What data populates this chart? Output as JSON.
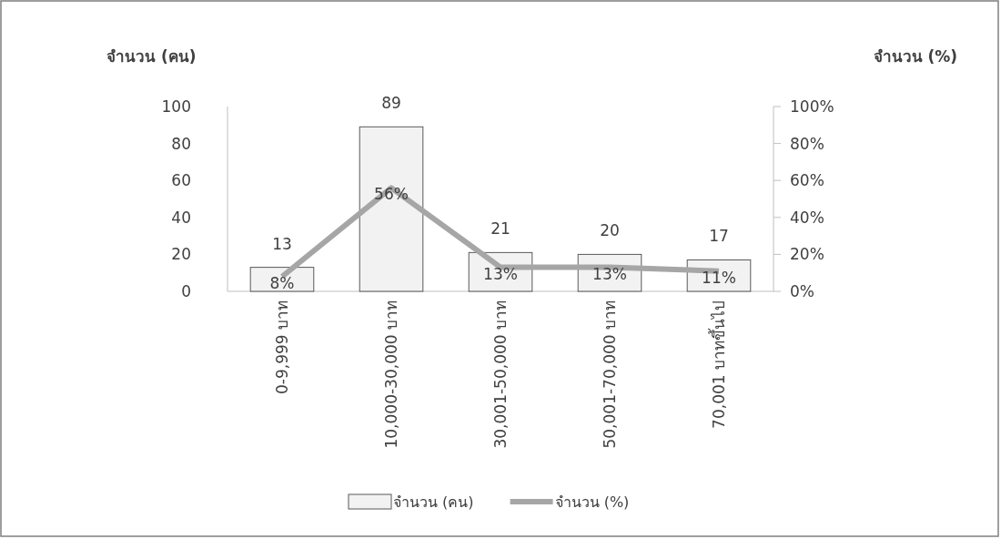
{
  "chart_data": {
    "type": "bar",
    "ylabel": "จำนวน (คน)",
    "y2label": "จำนวน (%)",
    "categories": [
      "0-9,999 บาท",
      "10,000-30,000 บาท",
      "30,001-50,000 บาท",
      "50,001-70,000 บาท",
      "70,001 บาทขึ้นไป"
    ],
    "series": [
      {
        "name": "จำนวน (คน)",
        "color": "#f2f2f2",
        "values": [
          13,
          89,
          21,
          20,
          17
        ],
        "value_labels": [
          "13",
          "89",
          "21",
          "20",
          "17"
        ]
      },
      {
        "name": "จำนวน (%)",
        "type": "line",
        "axis": "y2",
        "color": "#a6a6a6",
        "values": [
          8,
          56,
          13,
          13,
          11
        ],
        "value_labels": [
          "8%",
          "56%",
          "13%",
          "13%",
          "11%"
        ]
      }
    ],
    "ylim": [
      0,
      100
    ],
    "yticks": [
      0,
      20,
      40,
      60,
      80,
      100
    ],
    "y2lim": [
      0,
      100
    ],
    "y2ticks": [
      {
        "value": 0,
        "label": "0%"
      },
      {
        "value": 20,
        "label": "20%"
      },
      {
        "value": 40,
        "label": "40%"
      },
      {
        "value": 60,
        "label": "60%"
      },
      {
        "value": 80,
        "label": "80%"
      },
      {
        "value": 100,
        "label": "100%"
      }
    ],
    "grid": false,
    "legend": "bottom",
    "marker": "none"
  }
}
